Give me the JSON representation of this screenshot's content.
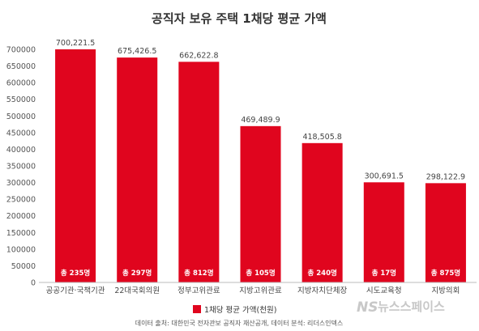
{
  "chart_data": {
    "type": "bar",
    "title": "공직자 보유 주택 1채당 평균 가액",
    "categories": [
      "공공기관·국책기관",
      "22대국회의원",
      "정부고위관료",
      "지방고위관료",
      "지방자치단체장",
      "시도교육청",
      "지방의회"
    ],
    "series": [
      {
        "name": "1채당 평균 가액(천원)",
        "values": [
          700221.5,
          675426.5,
          662622.8,
          469489.9,
          418505.8,
          300691.5,
          298122.9
        ]
      }
    ],
    "value_labels": [
      "700,221.5",
      "675,426.5",
      "662,622.8",
      "469,489.9",
      "418,505.8",
      "300,691.5",
      "298,122.9"
    ],
    "count_labels": [
      "총 235명",
      "총 297명",
      "총 812명",
      "총 105명",
      "총 240명",
      "총 17명",
      "총 875명"
    ],
    "ylim": [
      0,
      700000
    ],
    "yticks": [
      0,
      50000,
      100000,
      150000,
      200000,
      250000,
      300000,
      350000,
      400000,
      450000,
      500000,
      550000,
      600000,
      650000,
      700000
    ],
    "grid": false,
    "legend": "bottom-center",
    "bar_color": "#e0051e"
  },
  "source_text": "데이터 출처: 대한민국 전자관보 공직자 재산공개, 데이터 분석: 리더스인덱스",
  "watermark": {
    "logo": "NS",
    "text": "뉴스스페이스"
  }
}
